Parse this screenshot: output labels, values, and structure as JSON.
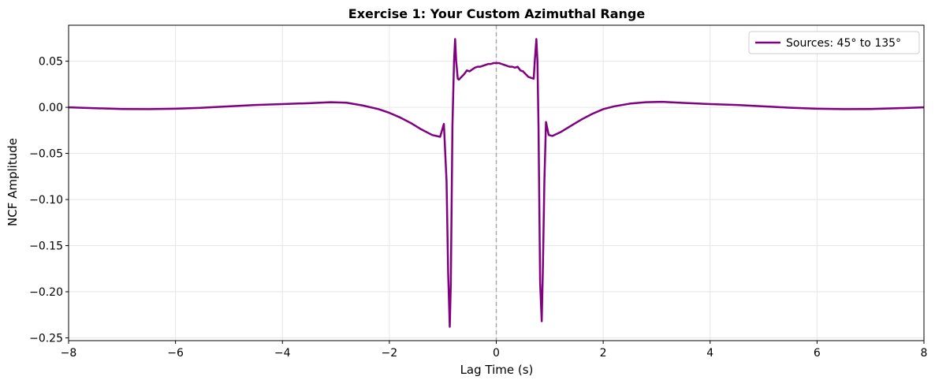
{
  "chart_data": {
    "type": "line",
    "title": "Exercise 1: Your Custom Azimuthal Range",
    "xlabel": "Lag Time (s)",
    "ylabel": "NCF Amplitude",
    "xlim": [
      -8,
      8
    ],
    "ylim": [
      -0.253,
      0.089
    ],
    "xticks": [
      -8,
      -6,
      -4,
      -2,
      0,
      2,
      4,
      6,
      8
    ],
    "xtick_labels": [
      "−8",
      "−6",
      "−4",
      "−2",
      "0",
      "2",
      "4",
      "6",
      "8"
    ],
    "yticks": [
      0.05,
      0.0,
      -0.05,
      -0.1,
      -0.15,
      -0.2,
      -0.25
    ],
    "ytick_labels": [
      "0.05",
      "0.00",
      "−0.05",
      "−0.10",
      "−0.15",
      "−0.20",
      "−0.25"
    ],
    "grid": true,
    "vline": {
      "x": 0,
      "style": "dashed",
      "color": "#aaaaaa"
    },
    "legend": {
      "location": "top-right",
      "entries": [
        "Sources: 45° to 135°"
      ]
    },
    "series": [
      {
        "name": "Sources: 45° to 135°",
        "color": "#800080",
        "x": [
          -8,
          -7.5,
          -7,
          -6.5,
          -6,
          -5.5,
          -5,
          -4.5,
          -4,
          -3.5,
          -3.1,
          -2.8,
          -2.5,
          -2.2,
          -2.0,
          -1.8,
          -1.6,
          -1.4,
          -1.2,
          -1.05,
          -0.98,
          -0.93,
          -0.9,
          -0.87,
          -0.85,
          -0.82,
          -0.79,
          -0.77,
          -0.75,
          -0.72,
          -0.7,
          -0.65,
          -0.6,
          -0.55,
          -0.5,
          -0.45,
          -0.4,
          -0.35,
          -0.3,
          -0.25,
          -0.2,
          -0.15,
          -0.1,
          -0.05,
          0,
          0.05,
          0.1,
          0.15,
          0.2,
          0.25,
          0.3,
          0.35,
          0.4,
          0.45,
          0.5,
          0.55,
          0.6,
          0.65,
          0.7,
          0.72,
          0.75,
          0.77,
          0.79,
          0.82,
          0.85,
          0.87,
          0.9,
          0.93,
          0.98,
          1.05,
          1.2,
          1.4,
          1.6,
          1.8,
          2.0,
          2.2,
          2.5,
          2.8,
          3.1,
          3.5,
          4,
          4.5,
          5,
          5.5,
          6,
          6.5,
          7,
          7.5,
          8
        ],
        "y": [
          0.0,
          -0.001,
          -0.0018,
          -0.002,
          -0.0015,
          -0.0005,
          0.001,
          0.0025,
          0.0035,
          0.0045,
          0.0055,
          0.005,
          0.002,
          -0.002,
          -0.006,
          -0.011,
          -0.017,
          -0.024,
          -0.03,
          -0.032,
          -0.018,
          -0.08,
          -0.18,
          -0.238,
          -0.19,
          -0.02,
          0.05,
          0.074,
          0.05,
          0.031,
          0.03,
          0.033,
          0.036,
          0.04,
          0.039,
          0.041,
          0.043,
          0.044,
          0.044,
          0.045,
          0.046,
          0.047,
          0.047,
          0.048,
          0.048,
          0.048,
          0.047,
          0.046,
          0.045,
          0.044,
          0.044,
          0.043,
          0.044,
          0.04,
          0.039,
          0.036,
          0.033,
          0.032,
          0.031,
          0.05,
          0.074,
          0.05,
          -0.02,
          -0.19,
          -0.232,
          -0.18,
          -0.08,
          -0.016,
          -0.03,
          -0.031,
          -0.027,
          -0.02,
          -0.013,
          -0.007,
          -0.002,
          0.001,
          0.004,
          0.0055,
          0.006,
          0.0048,
          0.0035,
          0.0025,
          0.001,
          -0.0005,
          -0.0015,
          -0.002,
          -0.0018,
          -0.001,
          0.0
        ]
      }
    ]
  }
}
